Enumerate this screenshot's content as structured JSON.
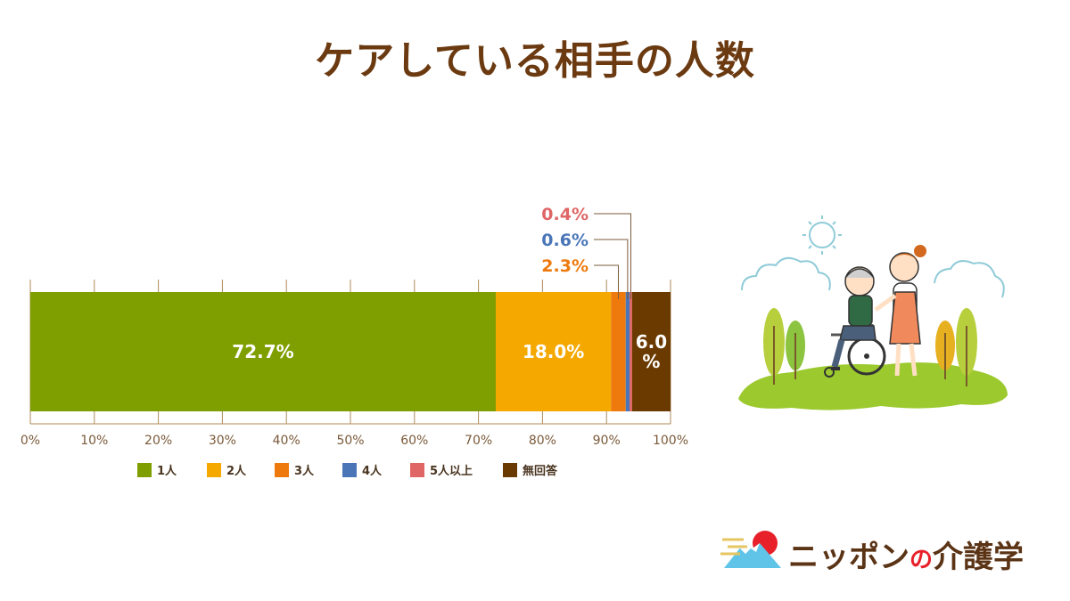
{
  "title": "ケアしている相手の人数",
  "chart_data": {
    "type": "bar",
    "orientation": "horizontal-stacked",
    "xlim": [
      0,
      100
    ],
    "x_unit": "%",
    "x_ticks": [
      "0%",
      "10%",
      "20%",
      "30%",
      "40%",
      "50%",
      "60%",
      "70%",
      "80%",
      "90%",
      "100%"
    ],
    "series": [
      {
        "name": "1人",
        "value": 72.7,
        "label": "72.7%",
        "color": "#7f9f00"
      },
      {
        "name": "2人",
        "value": 18.0,
        "label": "18.0%",
        "color": "#f5a800"
      },
      {
        "name": "3人",
        "value": 2.3,
        "label": "2.3%",
        "color": "#ee7a0d"
      },
      {
        "name": "4人",
        "value": 0.6,
        "label": "0.6%",
        "color": "#4a76b8"
      },
      {
        "name": "5人以上",
        "value": 0.4,
        "label": "0.4%",
        "color": "#e06666"
      },
      {
        "name": "無回答",
        "value": 6.0,
        "label": "6.0%",
        "color": "#6b3a00"
      }
    ],
    "legend_position": "bottom"
  },
  "brand": {
    "name_part1": "ニッポン",
    "name_no": "の",
    "name_part2": "介護学"
  },
  "illustration": {
    "icon": "caregiver-wheelchair-illustration"
  }
}
